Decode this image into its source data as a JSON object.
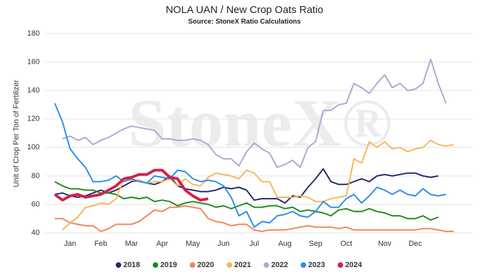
{
  "chart_data": {
    "type": "line",
    "title": "NOLA UAN / New Crop Oats Ratio",
    "subtitle": "Source: StoneX Ratio Calculations",
    "watermark": "StoneX®",
    "y_label": "Unit of Crop Per Ton of Fertilizer",
    "ylim": [
      40,
      180
    ],
    "yticks": [
      40,
      60,
      80,
      100,
      120,
      140,
      160,
      180
    ],
    "grid": true,
    "legend": "bottom",
    "categories": [
      null,
      null,
      "Jan",
      null,
      null,
      null,
      "Feb",
      null,
      null,
      null,
      "Mar",
      null,
      null,
      null,
      "Apr",
      null,
      null,
      null,
      "May",
      null,
      null,
      null,
      "Jun",
      null,
      null,
      null,
      "Jul",
      null,
      null,
      null,
      "Aug",
      null,
      null,
      null,
      "Sep",
      null,
      null,
      null,
      "Oct",
      null,
      null,
      null,
      null,
      "Nov",
      null,
      null,
      null,
      "Dec",
      null,
      null,
      null,
      null,
      null,
      null
    ],
    "series": [
      {
        "name": "2018",
        "color": "#1f2a6b",
        "values": [
          67,
          68,
          66,
          65,
          66,
          68,
          70,
          68,
          70,
          73,
          76,
          77,
          75,
          74,
          76,
          80,
          73,
          71,
          70,
          69,
          69,
          70,
          72,
          71,
          72,
          70,
          63,
          64,
          64,
          64,
          61,
          66,
          65,
          72,
          78,
          85,
          76,
          74,
          74,
          76,
          78,
          76,
          80,
          81,
          80,
          81,
          82,
          82,
          80,
          79,
          80,
          null,
          null,
          null
        ]
      },
      {
        "name": "2019",
        "color": "#1e8a1e",
        "values": [
          76,
          73,
          71,
          71,
          70,
          70,
          68,
          68,
          67,
          64,
          65,
          64,
          65,
          62,
          63,
          62,
          59,
          61,
          62,
          61,
          60,
          58,
          59,
          57,
          59,
          61,
          58,
          58,
          59,
          59,
          57,
          58,
          55,
          56,
          55,
          54,
          52,
          56,
          57,
          55,
          55,
          57,
          55,
          54,
          52,
          52,
          50,
          50,
          52,
          49,
          51,
          null,
          null,
          null
        ]
      },
      {
        "name": "2020",
        "color": "#f0845a",
        "values": [
          50,
          50,
          47,
          46,
          45,
          45,
          41,
          43,
          46,
          46,
          46,
          48,
          52,
          56,
          55,
          58,
          58,
          59,
          58,
          57,
          50,
          48,
          47,
          45,
          46,
          46,
          42,
          41,
          42,
          42,
          42,
          43,
          44,
          45,
          44,
          44,
          44,
          43,
          44,
          42,
          42,
          42,
          42,
          42,
          42,
          42,
          42,
          42,
          43,
          43,
          42,
          41,
          41,
          null
        ]
      },
      {
        "name": "2021",
        "color": "#f5b757",
        "values": [
          null,
          42,
          47,
          51,
          58,
          59,
          61,
          60,
          64,
          78,
          77,
          77,
          75,
          76,
          76,
          78,
          73,
          78,
          74,
          73,
          79,
          82,
          81,
          80,
          78,
          84,
          82,
          76,
          76,
          65,
          65,
          65,
          66,
          65,
          62,
          62,
          64,
          65,
          66,
          92,
          89,
          104,
          100,
          104,
          99,
          100,
          97,
          99,
          100,
          105,
          102,
          101,
          102,
          null
        ]
      },
      {
        "name": "2022",
        "color": "#a9a9d6",
        "values": [
          null,
          106,
          108,
          105,
          107,
          102,
          105,
          107,
          110,
          113,
          115,
          114,
          113,
          112,
          106,
          106,
          105,
          105,
          106,
          105,
          102,
          95,
          92,
          92,
          87,
          97,
          103,
          99,
          96,
          86,
          88,
          91,
          86,
          100,
          104,
          126,
          126,
          130,
          131,
          145,
          142,
          138,
          145,
          151,
          142,
          145,
          140,
          141,
          145,
          162,
          145,
          131,
          null,
          null
        ]
      },
      {
        "name": "2023",
        "color": "#2a8de8",
        "values": [
          131,
          118,
          99,
          92,
          86,
          76,
          76,
          77,
          80,
          76,
          78,
          76,
          75,
          80,
          79,
          78,
          84,
          83,
          78,
          76,
          77,
          76,
          73,
          65,
          52,
          55,
          44,
          48,
          47,
          52,
          53,
          55,
          52,
          51,
          55,
          62,
          58,
          58,
          64,
          67,
          61,
          66,
          72,
          70,
          67,
          70,
          67,
          66,
          71,
          67,
          66,
          67,
          null,
          null
        ]
      },
      {
        "name": "2024",
        "color": "#d6204a",
        "width": 4,
        "values": [
          67,
          63,
          66,
          67,
          65,
          66,
          67,
          70,
          73,
          78,
          79,
          81,
          81,
          84,
          84,
          79,
          78,
          70,
          66,
          63,
          64,
          null,
          null,
          null,
          null,
          null,
          null,
          null,
          null,
          null,
          null,
          null,
          null,
          null,
          null,
          null,
          null,
          null,
          null,
          null,
          null,
          null,
          null,
          null,
          null,
          null,
          null,
          null,
          null,
          null,
          null,
          null,
          null,
          null
        ]
      }
    ]
  }
}
